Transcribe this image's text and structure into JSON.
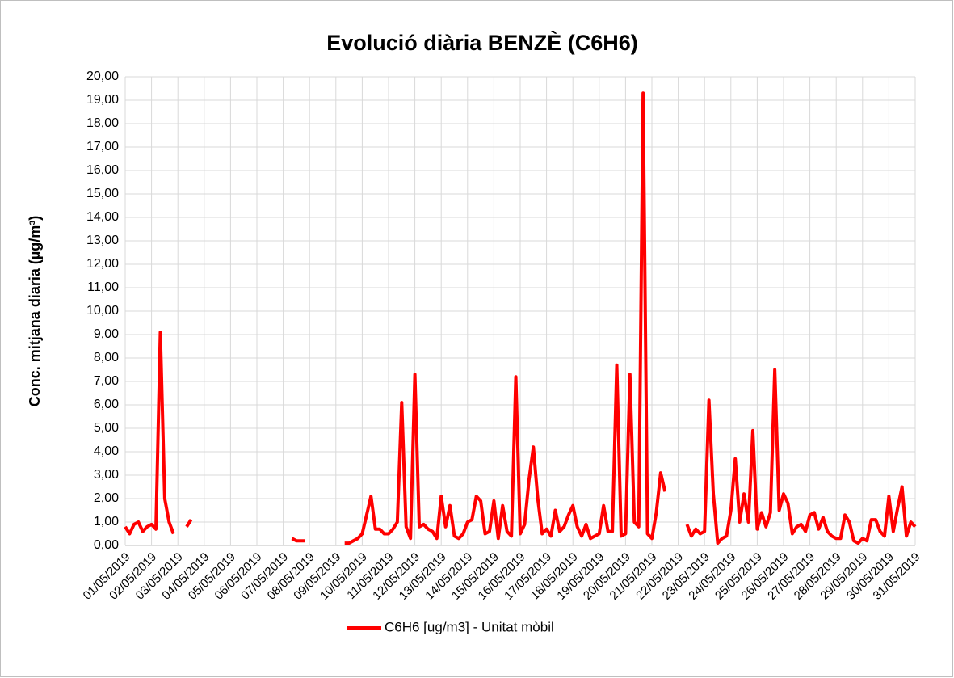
{
  "chart_data": {
    "type": "line",
    "title": "Evolució diària BENZÈ (C6H6)",
    "y_label": "Conc. mitjana diaria (µg/m³)",
    "ylim": [
      0,
      20
    ],
    "yticks": [
      {
        "value": 0,
        "label": "0,00"
      },
      {
        "value": 1,
        "label": "1,00"
      },
      {
        "value": 2,
        "label": "2,00"
      },
      {
        "value": 3,
        "label": "3,00"
      },
      {
        "value": 4,
        "label": "4,00"
      },
      {
        "value": 5,
        "label": "5,00"
      },
      {
        "value": 6,
        "label": "6,00"
      },
      {
        "value": 7,
        "label": "7,00"
      },
      {
        "value": 8,
        "label": "8,00"
      },
      {
        "value": 9,
        "label": "9,00"
      },
      {
        "value": 10,
        "label": "10,00"
      },
      {
        "value": 11,
        "label": "11,00"
      },
      {
        "value": 12,
        "label": "12,00"
      },
      {
        "value": 13,
        "label": "13,00"
      },
      {
        "value": 14,
        "label": "14,00"
      },
      {
        "value": 15,
        "label": "15,00"
      },
      {
        "value": 16,
        "label": "16,00"
      },
      {
        "value": 17,
        "label": "17,00"
      },
      {
        "value": 18,
        "label": "18,00"
      },
      {
        "value": 19,
        "label": "19,00"
      },
      {
        "value": 20,
        "label": "20,00"
      }
    ],
    "grid": true,
    "legend": "bottom",
    "categories": [
      "01/05/2019",
      null,
      null,
      null,
      null,
      null,
      "02/05/2019",
      null,
      null,
      null,
      null,
      null,
      "03/05/2019",
      null,
      null,
      null,
      null,
      null,
      "04/05/2019",
      null,
      null,
      null,
      null,
      null,
      "05/05/2019",
      null,
      null,
      null,
      null,
      null,
      "06/05/2019",
      null,
      null,
      null,
      null,
      null,
      "07/05/2019",
      null,
      null,
      null,
      null,
      null,
      "08/05/2019",
      null,
      null,
      null,
      null,
      null,
      "09/05/2019",
      null,
      null,
      null,
      null,
      null,
      "10/05/2019",
      null,
      null,
      null,
      null,
      null,
      "11/05/2019",
      null,
      null,
      null,
      null,
      null,
      "12/05/2019",
      null,
      null,
      null,
      null,
      null,
      "13/05/2019",
      null,
      null,
      null,
      null,
      null,
      "14/05/2019",
      null,
      null,
      null,
      null,
      null,
      "15/05/2019",
      null,
      null,
      null,
      null,
      null,
      "16/05/2019",
      null,
      null,
      null,
      null,
      null,
      "17/05/2019",
      null,
      null,
      null,
      null,
      null,
      "18/05/2019",
      null,
      null,
      null,
      null,
      null,
      "19/05/2019",
      null,
      null,
      null,
      null,
      null,
      "20/05/2019",
      null,
      null,
      null,
      null,
      null,
      "21/05/2019",
      null,
      null,
      null,
      null,
      null,
      "22/05/2019",
      null,
      null,
      null,
      null,
      null,
      "23/05/2019",
      null,
      null,
      null,
      null,
      null,
      "24/05/2019",
      null,
      null,
      null,
      null,
      null,
      "25/05/2019",
      null,
      null,
      null,
      null,
      null,
      "26/05/2019",
      null,
      null,
      null,
      null,
      null,
      "27/05/2019",
      null,
      null,
      null,
      null,
      null,
      "28/05/2019",
      null,
      null,
      null,
      null,
      null,
      "29/05/2019",
      null,
      null,
      null,
      null,
      null,
      "30/05/2019",
      null,
      null,
      null,
      null,
      null,
      "31/05/2019"
    ],
    "series": [
      {
        "name": "C6H6 [ug/m3] - Unitat mòbil",
        "color": "#ff0000",
        "values": [
          0.8,
          0.5,
          0.9,
          1.0,
          0.6,
          0.8,
          0.9,
          0.7,
          9.1,
          2.0,
          1.0,
          0.5,
          null,
          null,
          0.8,
          1.1,
          null,
          null,
          null,
          null,
          null,
          null,
          null,
          null,
          null,
          null,
          null,
          null,
          null,
          null,
          null,
          null,
          null,
          null,
          null,
          null,
          null,
          null,
          0.3,
          0.2,
          0.2,
          0.2,
          null,
          null,
          null,
          null,
          null,
          null,
          null,
          null,
          0.1,
          0.1,
          0.2,
          0.3,
          0.5,
          1.3,
          2.1,
          0.7,
          0.7,
          0.5,
          0.5,
          0.7,
          1.0,
          6.1,
          0.8,
          0.3,
          7.3,
          0.8,
          0.9,
          0.7,
          0.6,
          0.3,
          2.1,
          0.8,
          1.7,
          0.4,
          0.3,
          0.5,
          1.0,
          1.1,
          2.1,
          1.9,
          0.5,
          0.6,
          1.9,
          0.3,
          1.7,
          0.6,
          0.4,
          7.2,
          0.5,
          0.9,
          2.8,
          4.2,
          2.0,
          0.5,
          0.7,
          0.4,
          1.5,
          0.6,
          0.8,
          1.3,
          1.7,
          0.8,
          0.4,
          0.9,
          0.3,
          0.4,
          0.5,
          1.7,
          0.6,
          0.6,
          7.7,
          0.4,
          0.5,
          7.3,
          1.0,
          0.8,
          19.3,
          0.5,
          0.3,
          1.4,
          3.1,
          2.3,
          null,
          null,
          null,
          null,
          0.9,
          0.4,
          0.7,
          0.5,
          0.6,
          6.2,
          2.2,
          0.1,
          0.3,
          0.4,
          1.5,
          3.7,
          1.0,
          2.2,
          1.0,
          4.9,
          0.7,
          1.4,
          0.8,
          1.4,
          7.5,
          1.5,
          2.2,
          1.8,
          0.5,
          0.8,
          0.9,
          0.6,
          1.3,
          1.4,
          0.7,
          1.2,
          0.6,
          0.4,
          0.3,
          0.3,
          1.3,
          1.0,
          0.2,
          0.1,
          0.3,
          0.2,
          1.1,
          1.1,
          0.6,
          0.4,
          2.1,
          0.6,
          1.6,
          2.5,
          0.4,
          1.0,
          0.8
        ]
      }
    ]
  }
}
